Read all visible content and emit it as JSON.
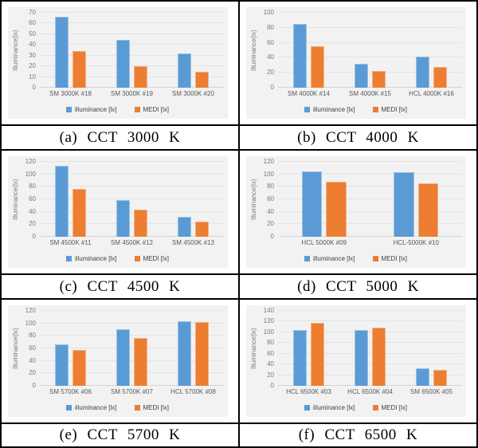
{
  "legend": {
    "illuminance_label": "illuminance [lx]",
    "medi_label": "MEDI [lx]"
  },
  "colors": {
    "illuminance": "#5B9BD5",
    "illuminance_border": "#9CC2E5",
    "medi": "#ED7D31",
    "medi_border": "#F4B183",
    "chart_background": "#F2F2F2",
    "gridline": "#E3E3E3",
    "axis_text": "#7A7A7A"
  },
  "chart_data": [
    {
      "type": "bar",
      "caption": "(a) CCT 3000 K",
      "ylabel": "Illuminance(lx)",
      "ylim": [
        0,
        70
      ],
      "ystep": 10,
      "grid": true,
      "legend_position": "bottom",
      "categories": [
        "SM 3000K #18",
        "SM 3000K #19",
        "SM 3000K #20"
      ],
      "series": [
        {
          "name": "illuminance [lx]",
          "color": "#5B9BD5",
          "border_color": "#9CC2E5",
          "values": [
            66,
            45,
            32
          ]
        },
        {
          "name": "MEDI [lx]",
          "color": "#ED7D31",
          "border_color": "#F4B183",
          "values": [
            34,
            20,
            15
          ]
        }
      ]
    },
    {
      "type": "bar",
      "caption": "(b) CCT 4000 K",
      "ylabel": "Illuminance(lx)",
      "ylim": [
        0,
        100
      ],
      "ystep": 20,
      "grid": true,
      "legend_position": "bottom",
      "categories": [
        "SM 4000K #14",
        "SM 4000K #15",
        "HCL 4000K #16"
      ],
      "series": [
        {
          "name": "illuminance [lx]",
          "color": "#5B9BD5",
          "border_color": "#9CC2E5",
          "values": [
            85,
            32,
            41
          ]
        },
        {
          "name": "MEDI [lx]",
          "color": "#ED7D31",
          "border_color": "#F4B183",
          "values": [
            55,
            22,
            28
          ]
        }
      ]
    },
    {
      "type": "bar",
      "caption": "(c) CCT 4500 K",
      "ylabel": "Illuminance(lx)",
      "ylim": [
        0,
        120
      ],
      "ystep": 20,
      "grid": true,
      "legend_position": "bottom",
      "categories": [
        "SM 4500K #11",
        "SM 4500K #12",
        "SM 4500K #13"
      ],
      "series": [
        {
          "name": "illuminance [lx]",
          "color": "#5B9BD5",
          "border_color": "#9CC2E5",
          "values": [
            113,
            59,
            32
          ]
        },
        {
          "name": "MEDI [lx]",
          "color": "#ED7D31",
          "border_color": "#F4B183",
          "values": [
            76,
            44,
            24
          ]
        }
      ]
    },
    {
      "type": "bar",
      "caption": "(d) CCT 5000 K",
      "ylabel": "Illuminance(lx)",
      "ylim": [
        0,
        120
      ],
      "ystep": 20,
      "grid": true,
      "legend_position": "bottom",
      "categories": [
        "HCL 5000K #09",
        "HCL-5000K #10"
      ],
      "series": [
        {
          "name": "illuminance [lx]",
          "color": "#5B9BD5",
          "border_color": "#9CC2E5",
          "values": [
            105,
            103
          ]
        },
        {
          "name": "MEDI [lx]",
          "color": "#ED7D31",
          "border_color": "#F4B183",
          "values": [
            88,
            86
          ]
        }
      ]
    },
    {
      "type": "bar",
      "caption": "(e) CCT 5700 K",
      "ylabel": "Illuminance(lx)",
      "ylim": [
        0,
        120
      ],
      "ystep": 20,
      "grid": true,
      "legend_position": "bottom",
      "categories": [
        "SM 5700K #06",
        "SM 5700K #07",
        "HCL 5700K #08"
      ],
      "series": [
        {
          "name": "illuminance [lx]",
          "color": "#5B9BD5",
          "border_color": "#9CC2E5",
          "values": [
            66,
            91,
            104
          ]
        },
        {
          "name": "MEDI [lx]",
          "color": "#ED7D31",
          "border_color": "#F4B183",
          "values": [
            58,
            77,
            102
          ]
        }
      ]
    },
    {
      "type": "bar",
      "caption": "(f) CCT 6500 K",
      "ylabel": "Illuminance(lx)",
      "ylim": [
        0,
        140
      ],
      "ystep": 20,
      "grid": true,
      "legend_position": "bottom",
      "categories": [
        "HCL 6500K #03",
        "HCL 6500K #04",
        "SM 6500K #05"
      ],
      "series": [
        {
          "name": "illuminance [lx]",
          "color": "#5B9BD5",
          "border_color": "#9CC2E5",
          "values": [
            105,
            105,
            33
          ]
        },
        {
          "name": "MEDI [lx]",
          "color": "#ED7D31",
          "border_color": "#F4B183",
          "values": [
            118,
            109,
            30
          ]
        }
      ]
    }
  ]
}
